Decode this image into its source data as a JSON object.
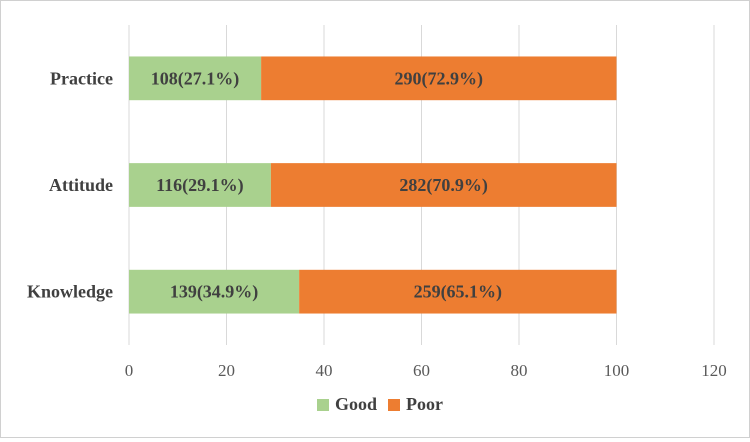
{
  "chart_data": {
    "type": "bar",
    "orientation": "horizontal",
    "stacked": true,
    "categories": [
      "Practice",
      "Attitude",
      "Knowledge"
    ],
    "series": [
      {
        "name": "Good",
        "color": "#a9d18e",
        "values": [
          27.1,
          29.1,
          34.9
        ],
        "labels": [
          "108(27.1%)",
          "116(29.1%)",
          "139(34.9%)"
        ]
      },
      {
        "name": "Poor",
        "color": "#ed7d31",
        "values": [
          72.9,
          70.9,
          65.1
        ],
        "labels": [
          "290(72.9%)",
          "282(70.9%)",
          "259(65.1%)"
        ]
      }
    ],
    "xlim": [
      0,
      120
    ],
    "xticks": [
      0,
      20,
      40,
      60,
      80,
      100,
      120
    ],
    "grid": "vertical",
    "legend_position": "bottom",
    "title": "",
    "xlabel": "",
    "ylabel": ""
  }
}
